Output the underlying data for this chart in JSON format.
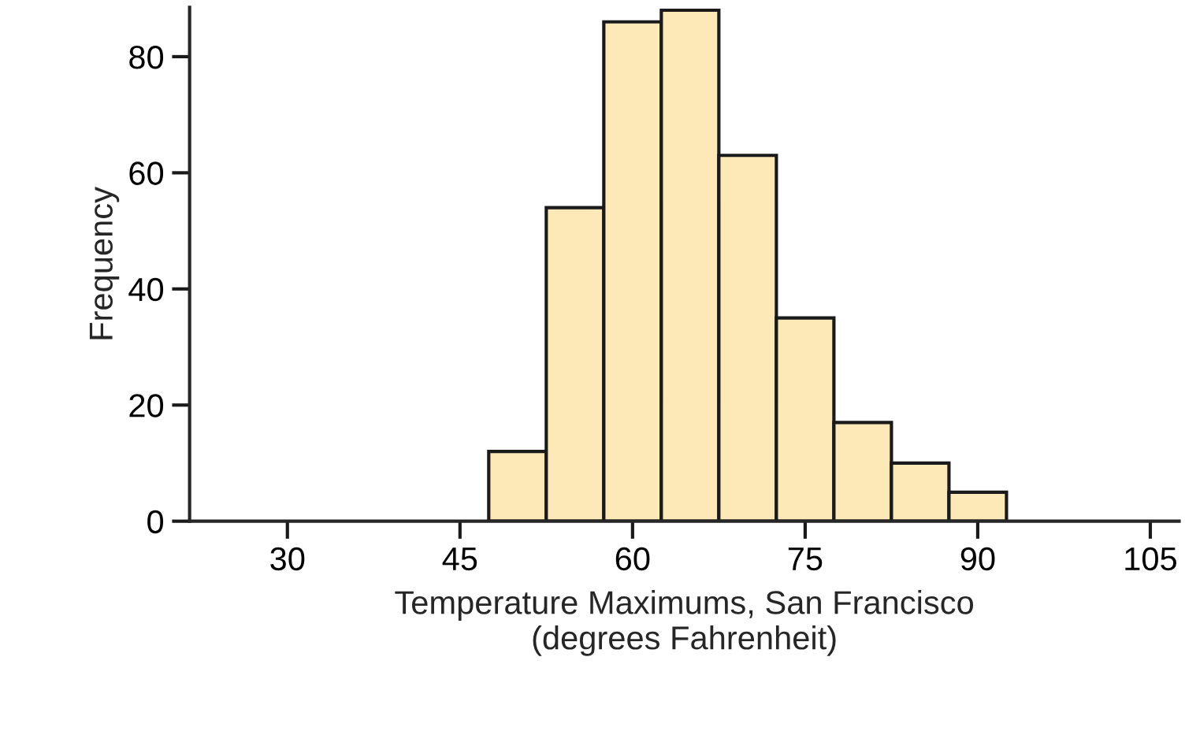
{
  "chart_data": {
    "type": "histogram",
    "xlabel": "Temperature Maximums, San Francisco\n(degrees Fahrenheit)",
    "ylabel": "Frequency",
    "bins": [
      47.5,
      52.5,
      57.5,
      62.5,
      67.5,
      72.5,
      77.5,
      82.5,
      87.5,
      92.5
    ],
    "values": [
      12,
      54,
      86,
      88,
      63,
      35,
      17,
      10,
      5
    ],
    "color": "#fde8b8",
    "xlim": [
      21.5,
      107.5
    ],
    "xticks": [
      30,
      45,
      60,
      75,
      90,
      105
    ],
    "ylim": [
      0,
      88.5
    ],
    "yticks": [
      0,
      20,
      40,
      60,
      80
    ],
    "grid": false
  }
}
